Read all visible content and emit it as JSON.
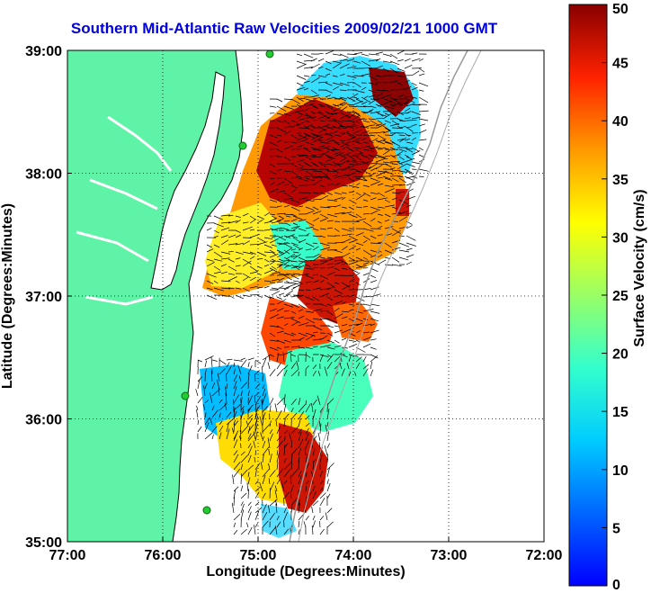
{
  "title": "Southern Mid-Atlantic Raw Velocities 2009/02/21 1000 GMT",
  "map": {
    "x_label": "Longitude (Degrees:Minutes)",
    "y_label": "Latitude (Degrees:Minutes)",
    "lon_range": [
      -77.0,
      -72.0
    ],
    "lat_range": [
      35.0,
      39.0
    ],
    "lon_ticks": [
      {
        "value": -77.0,
        "label": "77:00"
      },
      {
        "value": -76.0,
        "label": "76:00"
      },
      {
        "value": -75.0,
        "label": "75:00"
      },
      {
        "value": -74.0,
        "label": "74:00"
      },
      {
        "value": -73.0,
        "label": "73:00"
      },
      {
        "value": -72.0,
        "label": "72:00"
      }
    ],
    "lat_ticks": [
      {
        "value": 35.0,
        "label": "35:00"
      },
      {
        "value": 36.0,
        "label": "36:00"
      },
      {
        "value": 37.0,
        "label": "37:00"
      },
      {
        "value": 38.0,
        "label": "38:00"
      },
      {
        "value": 39.0,
        "label": "39:00"
      }
    ],
    "grid": "dotted",
    "land_color": "#5ff3a8",
    "coast_color": "#000000",
    "station_color": "#22cc33"
  },
  "colorbar": {
    "label": "Surface Velocity (cm/s)",
    "min": 0,
    "max": 50,
    "ticks": [
      {
        "value": 0,
        "label": "0"
      },
      {
        "value": 5,
        "label": "5"
      },
      {
        "value": 10,
        "label": "10"
      },
      {
        "value": 15,
        "label": "15"
      },
      {
        "value": 20,
        "label": "20"
      },
      {
        "value": 25,
        "label": "25"
      },
      {
        "value": 30,
        "label": "30"
      },
      {
        "value": 35,
        "label": "35"
      },
      {
        "value": 40,
        "label": "40"
      },
      {
        "value": 45,
        "label": "45"
      },
      {
        "value": 50,
        "label": "50"
      }
    ],
    "colormap": "jet"
  }
}
